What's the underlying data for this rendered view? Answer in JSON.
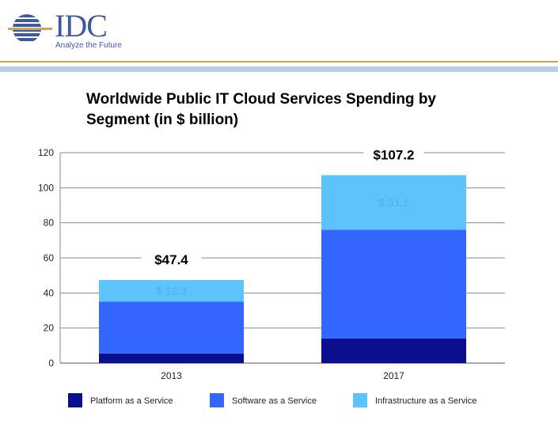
{
  "header": {
    "logo_text": "IDC",
    "logo_tagline": "Analyze the Future",
    "colors": {
      "logo": "#3e5a9e",
      "gold_rule": "#c9a54e",
      "blue_band": "#b9cde6"
    }
  },
  "chart_data": {
    "type": "bar",
    "stacked": true,
    "title": "Worldwide Public IT Cloud Services Spending by Segment (in $ billion)",
    "xlabel": "",
    "ylabel": "",
    "ylim": [
      0,
      120
    ],
    "yticks": [
      0,
      20,
      40,
      60,
      80,
      100,
      120
    ],
    "grid": true,
    "legend_position": "bottom",
    "categories": [
      "2013",
      "2017"
    ],
    "series": [
      {
        "name": "Platform as a Service",
        "color": "#0b0f8f",
        "values": [
          5.5,
          14
        ]
      },
      {
        "name": "Software as a Service",
        "color": "#3366ff",
        "values": [
          29.6,
          62.1
        ]
      },
      {
        "name": "Infrastructure as a Service",
        "color": "#5cc3fb",
        "values": [
          12.3,
          31.1
        ]
      }
    ],
    "totals": [
      47.4,
      107.2
    ],
    "total_labels": [
      "$47.4",
      "$107.2"
    ],
    "segment_labels": [
      {
        "category": "2013",
        "series": "Infrastructure as a Service",
        "text": "$ 12.3"
      },
      {
        "category": "2017",
        "series": "Infrastructure as a Service",
        "text": "$ 31.1"
      }
    ]
  }
}
